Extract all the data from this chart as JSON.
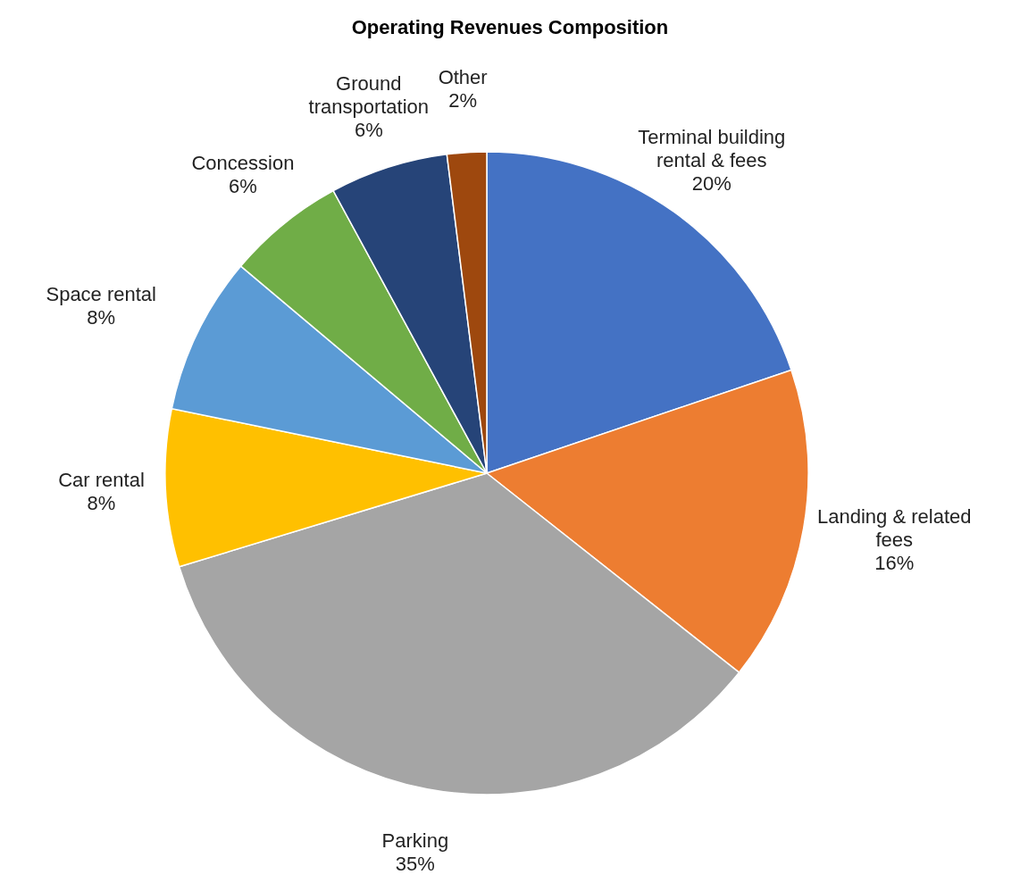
{
  "chart_data": {
    "type": "pie",
    "title": "Operating Revenues Composition",
    "categories": [
      "Terminal building rental & fees",
      "Landing & related fees",
      "Parking",
      "Car rental",
      "Space rental",
      "Concession",
      "Ground transportation",
      "Other"
    ],
    "values": [
      20,
      16,
      35,
      8,
      8,
      6,
      6,
      2
    ],
    "value_labels": [
      "20%",
      "16%",
      "35%",
      "8%",
      "8%",
      "6%",
      "6%",
      "2%"
    ],
    "colors": [
      "#4472c4",
      "#ed7d31",
      "#a5a5a5",
      "#ffc000",
      "#5b9bd5",
      "#70ad47",
      "#264478",
      "#9e480e"
    ]
  }
}
